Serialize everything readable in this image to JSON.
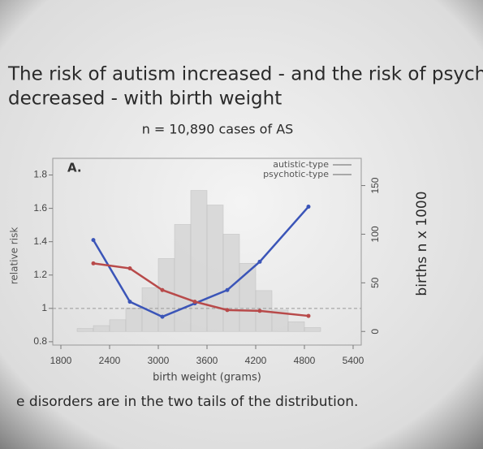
{
  "chart_data": {
    "type": "line",
    "title": "The risk of autism increased - and the risk of psychosis decreased - with birth weight",
    "subtitle": "n = 10,890 cases of AS",
    "caption": "e disorders are in the two tails of the distribution.",
    "panel_label": "A.",
    "xlabel": "birth weight (grams)",
    "ylabel": "relative risk",
    "y2label": "births n x 1000",
    "xlim": [
      1700,
      5500
    ],
    "xticks": [
      1800,
      2400,
      3000,
      3600,
      4200,
      4800,
      5400
    ],
    "ylim": [
      0.78,
      1.9
    ],
    "yticks": [
      0.8,
      1.0,
      1.2,
      1.4,
      1.6,
      1.8
    ],
    "y2lim": [
      -14,
      178
    ],
    "y2ticks": [
      0,
      50,
      100,
      150
    ],
    "reference_line": 1.0,
    "x": [
      2200,
      2650,
      3050,
      3450,
      3850,
      4250,
      4850
    ],
    "series": [
      {
        "name": "autistic-type",
        "color": "#3b55b8",
        "values": [
          1.41,
          1.04,
          0.95,
          1.03,
          1.11,
          1.28,
          1.61
        ]
      },
      {
        "name": "psychotic-type",
        "color": "#b84a4a",
        "values": [
          1.27,
          1.24,
          1.11,
          1.04,
          0.99,
          0.985,
          0.955
        ]
      }
    ],
    "histogram": {
      "axis": "y2",
      "color": "#d4d4d4",
      "bins": [
        2000,
        2200,
        2400,
        2600,
        2800,
        3000,
        3200,
        3400,
        3600,
        3800,
        4000,
        4200,
        4400,
        4600,
        4800,
        5000
      ],
      "counts": [
        3,
        6,
        12,
        24,
        45,
        75,
        110,
        145,
        130,
        100,
        70,
        42,
        22,
        10,
        4
      ]
    }
  }
}
